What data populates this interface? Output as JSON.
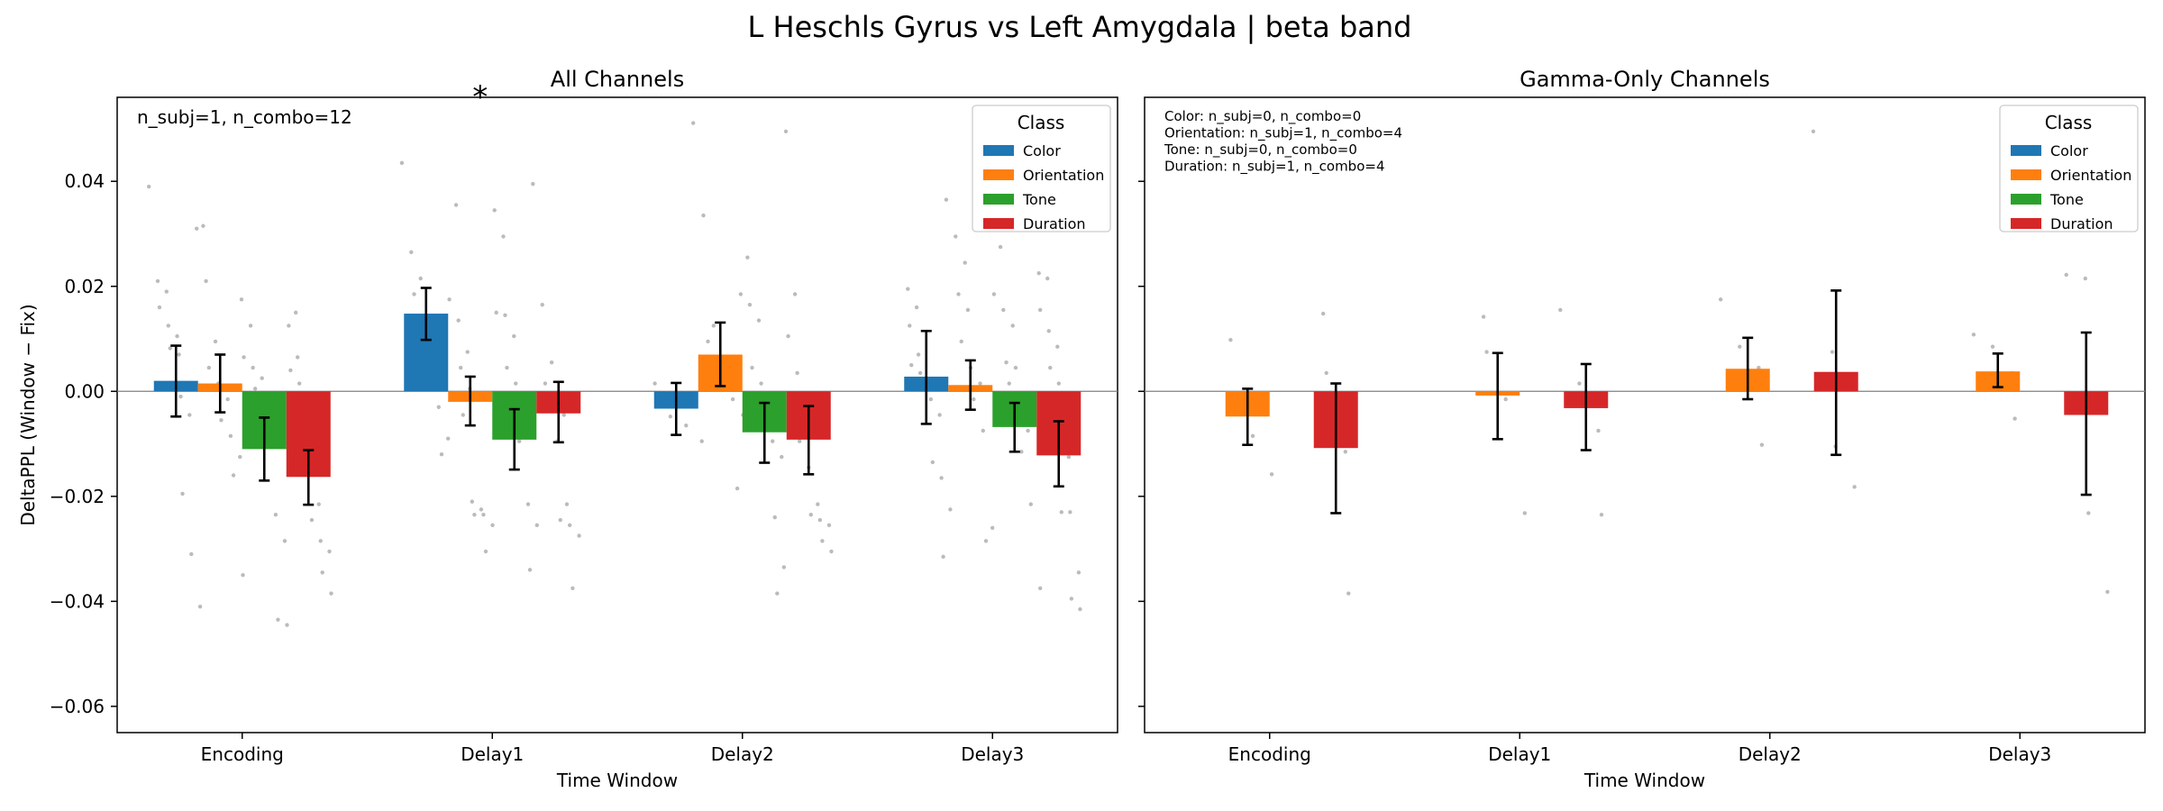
{
  "suptitle": "L Heschls Gyrus vs Left Amygdala  |  beta band",
  "colors": {
    "Color": "#1f77b4",
    "Orientation": "#ff7f0e",
    "Tone": "#2ca02c",
    "Duration": "#d62728",
    "scatter": "#bbbbbb",
    "errorbar": "#000000",
    "star": "#ff0000"
  },
  "chart_data": [
    {
      "type": "bar",
      "title": "All Channels",
      "xlabel": "Time Window",
      "ylabel": "DeltaPPL (Window − Fix)",
      "ylim": [
        -0.065,
        0.056
      ],
      "yticks": [
        0.04,
        0.02,
        0.0,
        -0.02,
        -0.04,
        -0.06
      ],
      "ytick_labels": [
        "0.04",
        "0.02",
        "0.00",
        "−0.02",
        "−0.04",
        "−0.06"
      ],
      "categories": [
        "Encoding",
        "Delay1",
        "Delay2",
        "Delay3"
      ],
      "annotation": "n_subj=1, n_combo=12",
      "significance": {
        "symbol": "*",
        "category": "Delay1",
        "series": "Color"
      },
      "legend": {
        "title": "Class",
        "position": "top-right",
        "entries": [
          "Color",
          "Orientation",
          "Tone",
          "Duration"
        ]
      },
      "series": [
        {
          "name": "Color",
          "values": [
            0.002,
            0.0148,
            -0.0033,
            0.0028
          ],
          "err_low": [
            -0.0048,
            0.0098,
            -0.0083,
            -0.0062
          ],
          "err_high": [
            0.0087,
            0.0197,
            0.0016,
            0.0115
          ],
          "points": [
            [
              0.039,
              0.021,
              0.019,
              0.016,
              0.0125,
              0.0105,
              0.0082,
              0.007,
              0.0015,
              -0.001,
              -0.0045,
              -0.0195,
              -0.031,
              -0.041
            ],
            [
              0.0435,
              0.0265,
              0.0215,
              0.0185,
              0.0125,
              0.0095,
              0.005,
              0.0035,
              0.0012,
              -0.003,
              -0.009,
              -0.012
            ],
            [
              0.0015,
              -0.0025,
              -0.0048,
              -0.0065,
              -0.0095
            ],
            [
              0.0195,
              0.016,
              0.0125,
              0.007,
              0.005,
              0.0035,
              0.002,
              0.0008,
              -0.0015,
              -0.0045,
              -0.0135,
              -0.0165,
              -0.0225,
              -0.0315
            ]
          ]
        },
        {
          "name": "Orientation",
          "values": [
            0.0015,
            -0.002,
            0.007,
            0.0012
          ],
          "err_low": [
            -0.004,
            -0.0065,
            0.001,
            -0.0035
          ],
          "err_high": [
            0.007,
            0.0028,
            0.0131,
            0.0059
          ],
          "points": [
            [
              0.0315,
              0.031,
              0.021,
              0.0095,
              0.0045,
              0.0015,
              -0.0015,
              -0.0055,
              -0.0085,
              -0.0125,
              -0.016,
              -0.035
            ],
            [
              0.0355,
              0.0175,
              0.0135,
              0.0075,
              0.0045,
              0.0005,
              -0.0045,
              -0.021,
              -0.0225,
              -0.0235,
              -0.0235,
              -0.0255,
              -0.0305
            ],
            [
              0.0511,
              0.0335,
              0.0125,
              0.0095,
              0.0065,
              0.0045,
              0.0018,
              -0.0015,
              -0.0045,
              -0.0185
            ],
            [
              0.0365,
              0.0295,
              0.0245,
              0.0185,
              0.0155,
              0.0095,
              0.0045,
              0.0015,
              -0.0015,
              -0.0075,
              -0.026,
              -0.0285
            ]
          ]
        },
        {
          "name": "Tone",
          "values": [
            -0.011,
            -0.0092,
            -0.0078,
            -0.0068
          ],
          "err_low": [
            -0.017,
            -0.0149,
            -0.0136,
            -0.0115
          ],
          "err_high": [
            -0.005,
            -0.0034,
            -0.0022,
            -0.0022
          ],
          "points": [
            [
              0.0175,
              0.0125,
              0.0065,
              0.0045,
              0.0025,
              0.0005,
              -0.0015,
              -0.0045,
              -0.0095,
              -0.0235,
              -0.0285,
              -0.0435,
              -0.0445
            ],
            [
              0.0345,
              0.0295,
              0.015,
              0.0145,
              0.0105,
              0.0045,
              0.0015,
              -0.0015,
              -0.0045,
              -0.0075,
              -0.0095,
              -0.0215,
              -0.0255,
              -0.034
            ],
            [
              0.0255,
              0.0185,
              0.0165,
              0.0135,
              0.0045,
              0.0015,
              -0.0015,
              -0.0055,
              -0.0095,
              -0.0125,
              -0.024,
              -0.0335,
              -0.0385
            ],
            [
              0.0275,
              0.0185,
              0.0155,
              0.0125,
              0.0055,
              0.0045,
              0.0015,
              -0.0045,
              -0.0075,
              -0.0115,
              -0.0215,
              -0.0375
            ]
          ]
        },
        {
          "name": "Duration",
          "values": [
            -0.0163,
            -0.0042,
            -0.0092,
            -0.0122
          ],
          "err_low": [
            -0.0216,
            -0.0097,
            -0.0158,
            -0.0181
          ],
          "err_high": [
            -0.0112,
            0.0018,
            -0.0028,
            -0.0057
          ],
          "points": [
            [
              0.015,
              0.0125,
              0.0065,
              0.004,
              0.0015,
              -0.0025,
              -0.0075,
              -0.0095,
              -0.0215,
              -0.0245,
              -0.0285,
              -0.0305,
              -0.0345,
              -0.0385
            ],
            [
              0.0395,
              0.0165,
              0.0055,
              0.0015,
              -0.0015,
              -0.0045,
              -0.0095,
              -0.0215,
              -0.0245,
              -0.0255,
              -0.0275,
              -0.0375
            ],
            [
              0.0495,
              0.0185,
              0.0105,
              0.0035,
              -0.0035,
              -0.0095,
              -0.0145,
              -0.0215,
              -0.0235,
              -0.0245,
              -0.0255,
              -0.0285,
              -0.0305
            ],
            [
              0.0225,
              0.0215,
              0.0155,
              0.0115,
              0.0085,
              0.0045,
              0.0015,
              -0.0025,
              -0.0095,
              -0.0125,
              -0.023,
              -0.023,
              -0.0345,
              -0.0395,
              -0.0415
            ]
          ]
        }
      ]
    },
    {
      "type": "bar",
      "title": "Gamma-Only Channels",
      "xlabel": "Time Window",
      "ylabel": "",
      "ylim": [
        -0.065,
        0.056
      ],
      "yticks": [
        0.04,
        0.02,
        0.0,
        -0.02,
        -0.04,
        -0.06
      ],
      "categories": [
        "Encoding",
        "Delay1",
        "Delay2",
        "Delay3"
      ],
      "annotation_lines": [
        "Color: n_subj=0, n_combo=0",
        "Orientation: n_subj=1, n_combo=4",
        "Tone: n_subj=0, n_combo=0",
        "Duration: n_subj=1, n_combo=4"
      ],
      "legend": {
        "title": "Class",
        "position": "top-right",
        "entries": [
          "Color",
          "Orientation",
          "Tone",
          "Duration"
        ]
      },
      "series": [
        {
          "name": "Color",
          "values": [
            null,
            null,
            null,
            null
          ]
        },
        {
          "name": "Orientation",
          "values": [
            -0.0048,
            -0.0008,
            0.0043,
            0.0038
          ],
          "err_low": [
            -0.0102,
            -0.0091,
            -0.0015,
            0.0008
          ],
          "err_high": [
            0.0005,
            0.0073,
            0.0102,
            0.0072
          ],
          "points": [
            [
              0.0098,
              -0.0015,
              -0.0085,
              -0.0158
            ],
            [
              0.0142,
              0.0075,
              -0.0015,
              -0.0232
            ],
            [
              0.0175,
              0.0085,
              0.0045,
              -0.0102
            ],
            [
              0.0108,
              0.0085,
              0.0035,
              -0.0052
            ]
          ]
        },
        {
          "name": "Tone",
          "values": [
            null,
            null,
            null,
            null
          ]
        },
        {
          "name": "Duration",
          "values": [
            -0.0108,
            -0.0032,
            0.0037,
            -0.0045
          ],
          "err_low": [
            -0.0232,
            -0.0112,
            -0.0121,
            -0.0197
          ],
          "err_high": [
            0.0015,
            0.0052,
            0.0192,
            0.0112
          ],
          "points": [
            [
              0.0148,
              0.0035,
              -0.0115,
              -0.0385
            ],
            [
              0.0155,
              0.0015,
              -0.0075,
              -0.0235
            ],
            [
              0.0495,
              0.0075,
              -0.0105,
              -0.0182
            ],
            [
              0.0222,
              0.0215,
              -0.0232,
              -0.0382
            ]
          ]
        }
      ]
    }
  ]
}
